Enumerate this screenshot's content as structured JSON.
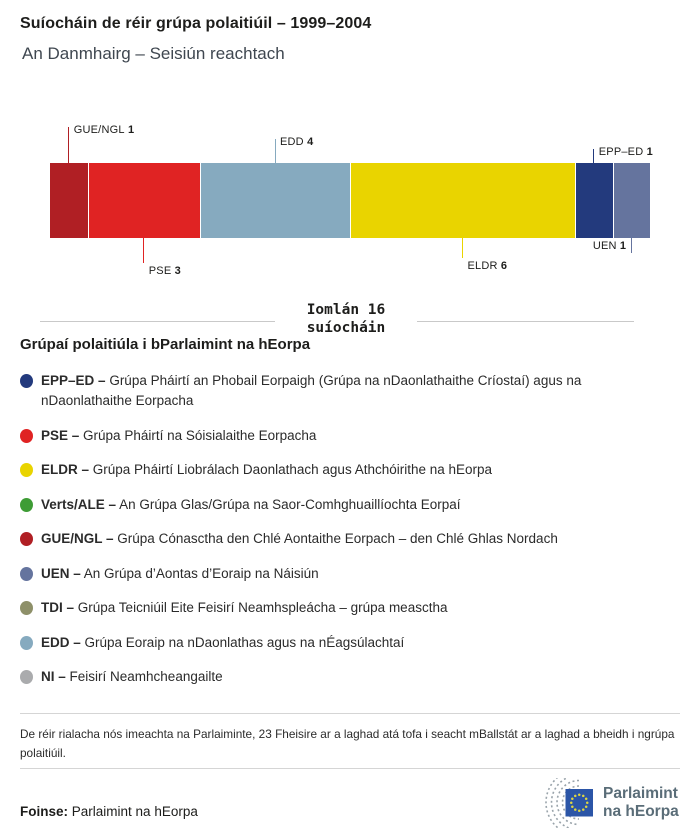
{
  "header": {
    "title": "Suíocháin de réir grúpa polaitiúil – 1999–2004",
    "subtitle": "An Danmhairg – Seisiún reachtach"
  },
  "chart_data": {
    "type": "bar",
    "variant": "horizontal stacked seat bar",
    "title": "Suíocháin de réir grúpa polaitiúil – 1999–2004",
    "region": "An Danmhairg",
    "session": "Seisiún reachtach",
    "total_seats": 16,
    "total_label": {
      "line1": "Iomlán 16",
      "line2": "suíocháin"
    },
    "categories": [
      "GUE/NGL",
      "PSE",
      "EDD",
      "ELDR",
      "EPP–ED",
      "UEN"
    ],
    "values": [
      1,
      3,
      4,
      6,
      1,
      1
    ],
    "segments": [
      {
        "group": "GUE/NGL",
        "seats": 1,
        "color": "#b01f24",
        "callout": {
          "side": "top",
          "line_len": 36,
          "align": "after"
        }
      },
      {
        "group": "PSE",
        "seats": 3,
        "color": "#e02323",
        "callout": {
          "side": "bottom",
          "line_len": 25,
          "align": "after"
        }
      },
      {
        "group": "EDD",
        "seats": 4,
        "color": "#86aabf",
        "callout": {
          "side": "top",
          "line_len": 24,
          "align": "after"
        }
      },
      {
        "group": "ELDR",
        "seats": 6,
        "color": "#e9d400",
        "callout": {
          "side": "bottom",
          "line_len": 20,
          "align": "after"
        }
      },
      {
        "group": "EPP–ED",
        "seats": 1,
        "color": "#233a7d",
        "callout": {
          "side": "top",
          "line_len": 14,
          "align": "after"
        }
      },
      {
        "group": "UEN",
        "seats": 1,
        "color": "#65749e",
        "callout": {
          "side": "bottom",
          "line_len": 15,
          "align": "before"
        }
      }
    ]
  },
  "legend": {
    "heading": "Grúpaí polaitiúla i bParlaimint na hEorpa",
    "items": [
      {
        "abbr": "EPP–ED –",
        "name": "Grúpa Pháirtí an Phobail Eorpaigh (Grúpa na nDaonlathaithe Críostaí) agus na nDaonlathaithe Eorpacha",
        "color": "#233a7d"
      },
      {
        "abbr": "PSE –",
        "name": "Grúpa Pháirtí na Sóisialaithe Eorpacha",
        "color": "#e02323"
      },
      {
        "abbr": "ELDR –",
        "name": "Grúpa Pháirtí Liobrálach Daonlathach agus Athchóirithe na hEorpa",
        "color": "#e9d400"
      },
      {
        "abbr": "Verts/ALE –",
        "name": "An Grúpa Glas/Grúpa na Saor-Comhghuaillíochta Eorpaí",
        "color": "#3e9c35"
      },
      {
        "abbr": "GUE/NGL –",
        "name": "Grúpa Cónasctha den Chlé Aontaithe Eorpach – den Chlé Ghlas Nordach",
        "color": "#b01f24"
      },
      {
        "abbr": "UEN –",
        "name": "An Grúpa d’Aontas d’Eoraip na Náisiún",
        "color": "#65749e"
      },
      {
        "abbr": "TDI –",
        "name": "Grúpa Teicniúil Eite Feisirí Neamhspleácha – grúpa measctha",
        "color": "#8e9069"
      },
      {
        "abbr": "EDD –",
        "name": "Grúpa Eoraip na nDaonlathas agus na nÉagsúlachtaí",
        "color": "#86aabf"
      },
      {
        "abbr": "NI –",
        "name": "Feisirí Neamhcheangailte",
        "color": "#aaabad"
      }
    ]
  },
  "footnote": "De réir rialacha nós imeachta na Parlaiminte, 23 Fheisire ar a laghad atá tofa i seacht mBallstát ar a laghad a bheidh i ngrúpa polaitiúil.",
  "source": {
    "label": "Foinse:",
    "value": "Parlaimint na hEorpa"
  },
  "logo": {
    "line1": "Parlaimint",
    "line2": "na hEorpa"
  },
  "colors": {
    "divider": "#d5d5d5",
    "total_rule": "#c9c9c9",
    "text_dark": "#1d1d1b",
    "text_body": "#2b2b2b",
    "logo_text": "#5a6d78",
    "logo_arcs": "#9aa4ab",
    "flag_blue": "#2b55a7",
    "flag_stars": "#ddd542"
  }
}
